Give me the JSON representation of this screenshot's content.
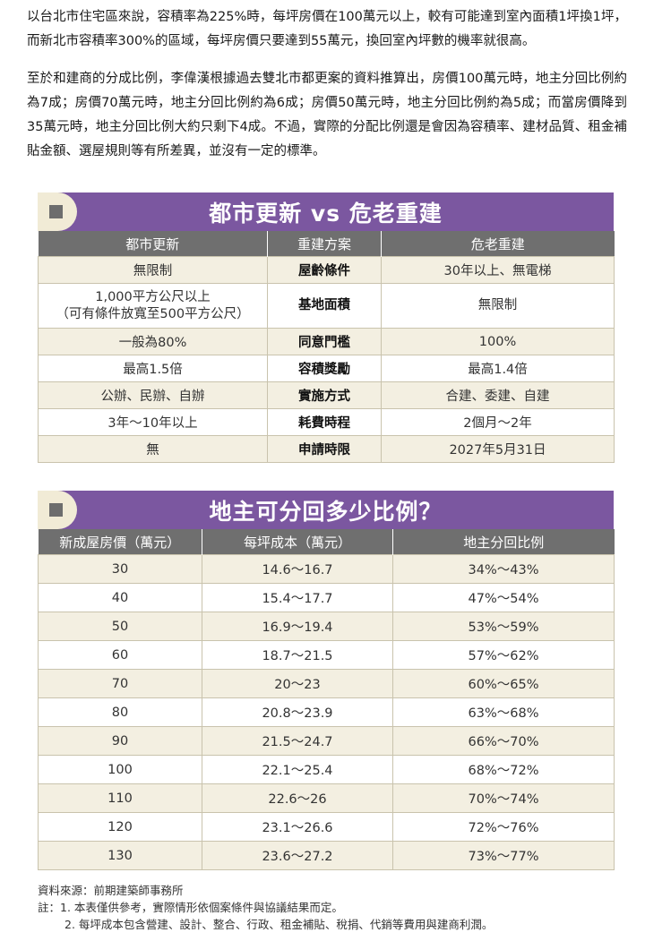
{
  "intro": {
    "p1": "以台北市住宅區來說，容積率為225%時，每坪房價在100萬元以上，較有可能達到室內面積1坪換1坪，而新北市容積率300%的區域，每坪房價只要達到55萬元，換回室內坪數的機率就很高。",
    "p2": "至於和建商的分成比例，李偉漢根據過去雙北市都更案的資料推算出，房價100萬元時，地主分回比例約為7成；房價70萬元時，地主分回比例約為6成；房價50萬元時，地主分回比例約為5成；而當房價降到35萬元時，地主分回比例大約只剩下4成。不過，實際的分配比例還是會因為容積率、建材品質、租金補貼金額、選屋規則等有所差異，並沒有一定的標準。"
  },
  "table1": {
    "title": "都市更新 vs 危老重建",
    "headers": [
      "都市更新",
      "重建方案",
      "危老重建"
    ],
    "rows": [
      [
        "無限制",
        "屋齡條件",
        "30年以上、無電梯"
      ],
      [
        "1,000平方公尺以上\n（可有條件放寬至500平方公尺）",
        "基地面積",
        "無限制"
      ],
      [
        "一般為80%",
        "同意門檻",
        "100%"
      ],
      [
        "最高1.5倍",
        "容積獎勵",
        "最高1.4倍"
      ],
      [
        "公辦、民辦、自辦",
        "實施方式",
        "合建、委建、自建"
      ],
      [
        "3年～10年以上",
        "耗費時程",
        "2個月～2年"
      ],
      [
        "無",
        "申請時限",
        "2027年5月31日"
      ]
    ]
  },
  "table2": {
    "title": "地主可分回多少比例？",
    "headers": [
      "新成屋房價（萬元）",
      "每坪成本（萬元）",
      "地主分回比例"
    ],
    "rows": [
      [
        "30",
        "14.6～16.7",
        "34%～43%"
      ],
      [
        "40",
        "15.4～17.7",
        "47%～54%"
      ],
      [
        "50",
        "16.9～19.4",
        "53%～59%"
      ],
      [
        "60",
        "18.7～21.5",
        "57%～62%"
      ],
      [
        "70",
        "20～23",
        "60%～65%"
      ],
      [
        "80",
        "20.8～23.9",
        "63%～68%"
      ],
      [
        "90",
        "21.5～24.7",
        "66%～70%"
      ],
      [
        "100",
        "22.1～25.4",
        "68%～72%"
      ],
      [
        "110",
        "22.6～26",
        "70%～74%"
      ],
      [
        "120",
        "23.1～26.6",
        "72%～76%"
      ],
      [
        "130",
        "23.6～27.2",
        "73%～77%"
      ]
    ]
  },
  "notes": {
    "source": "資料來源：前期建築師事務所",
    "note1": "註：1. 本表僅供參考，實際情形依個案條件與協議結果而定。",
    "note2": "2. 每坪成本包含營建、設計、整合、行政、租金補貼、稅捐、代銷等費用與建商利潤。"
  },
  "colors": {
    "banner": "#7b57a0",
    "header": "#6f6f6f",
    "stripe": "#f3efe1",
    "tab": "#f1ebd6"
  }
}
